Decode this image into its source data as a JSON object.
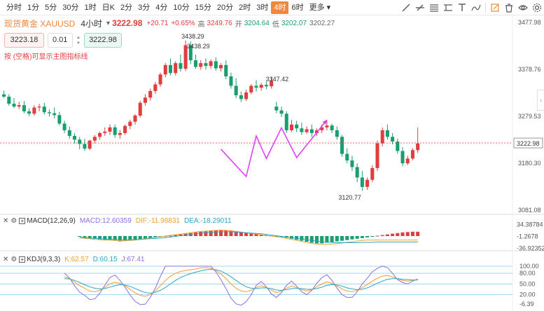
{
  "toolbar": {
    "intervals": [
      "分时",
      "1分",
      "5分",
      "30分",
      "1时",
      "日K",
      "2分",
      "3分",
      "4分",
      "10分",
      "15分",
      "20分",
      "2时",
      "3时",
      "4时",
      "6时",
      "更多"
    ],
    "active_interval": "4时",
    "icons": [
      "trend-line-icon",
      "horizontal-line-icon",
      "parallel-lines-icon",
      "text-icon",
      "pen-icon",
      "edit-icon",
      "delete-icon",
      "eye-icon",
      "settings-icon"
    ]
  },
  "header": {
    "name": "现货黄金 XAUUSD",
    "interval": "4小时",
    "price": "3222.98",
    "change": "+20.71",
    "change_pct": "+0.65%",
    "high_label": "高",
    "high": "3249.76",
    "open_label": "开",
    "open": "3204.64",
    "low_label": "低",
    "low": "3202.07",
    "close": "3202.27"
  },
  "trade": {
    "sell": "3223.18",
    "qty": "0.01",
    "buy": "3222.98"
  },
  "hint": "按 (空格)可显示主图指标线",
  "colors": {
    "up": "#e03e3e",
    "down": "#1a9e6f",
    "accent": "#f0873c",
    "projection": "#e040fb"
  },
  "chart_data": [
    {
      "type": "candlestick",
      "name": "price",
      "y_axis_labels": [
        "3477.98",
        "3378.76",
        "3279.53",
        "3180.30",
        "3081.08"
      ],
      "y_axis_values": [
        3477.98,
        3378.76,
        3279.53,
        3180.3,
        3081.08
      ],
      "current_price_label": "3222.98",
      "annotations": [
        {
          "text": "3438.29",
          "value": 3438.29
        },
        {
          "text": "3438.29",
          "value": 3438.29
        },
        {
          "text": "3347.42",
          "value": 3347.42
        },
        {
          "text": "3120.77",
          "value": 3120.77
        }
      ],
      "candles": [
        [
          3326,
          3334,
          3321,
          3318
        ],
        [
          3321,
          3326,
          3306,
          3302
        ],
        [
          3306,
          3318,
          3300,
          3297
        ],
        [
          3300,
          3310,
          3303,
          3295
        ],
        [
          3303,
          3312,
          3290,
          3286
        ],
        [
          3290,
          3296,
          3285,
          3280
        ],
        [
          3285,
          3303,
          3298,
          3281
        ],
        [
          3298,
          3306,
          3300,
          3290
        ],
        [
          3300,
          3308,
          3288,
          3283
        ],
        [
          3288,
          3294,
          3286,
          3279
        ],
        [
          3286,
          3298,
          3282,
          3275
        ],
        [
          3282,
          3289,
          3264,
          3260
        ],
        [
          3264,
          3270,
          3250,
          3244
        ],
        [
          3250,
          3258,
          3238,
          3232
        ],
        [
          3238,
          3244,
          3230,
          3222
        ],
        [
          3230,
          3236,
          3221,
          3210
        ],
        [
          3221,
          3232,
          3211,
          3206
        ],
        [
          3211,
          3230,
          3228,
          3208
        ],
        [
          3228,
          3240,
          3236,
          3222
        ],
        [
          3236,
          3247,
          3244,
          3230
        ],
        [
          3244,
          3256,
          3247,
          3238
        ],
        [
          3247,
          3262,
          3256,
          3240
        ],
        [
          3256,
          3262,
          3240,
          3234
        ],
        [
          3240,
          3250,
          3244,
          3232
        ],
        [
          3244,
          3262,
          3259,
          3240
        ],
        [
          3259,
          3272,
          3268,
          3252
        ],
        [
          3268,
          3284,
          3281,
          3262
        ],
        [
          3281,
          3312,
          3308,
          3277
        ],
        [
          3308,
          3326,
          3319,
          3302
        ],
        [
          3319,
          3338,
          3333,
          3313
        ],
        [
          3333,
          3352,
          3347,
          3327
        ],
        [
          3347,
          3372,
          3368,
          3342
        ],
        [
          3368,
          3392,
          3388,
          3362
        ],
        [
          3388,
          3402,
          3371,
          3366
        ],
        [
          3371,
          3396,
          3392,
          3366
        ],
        [
          3392,
          3410,
          3380,
          3374
        ],
        [
          3380,
          3440,
          3430,
          3375
        ],
        [
          3430,
          3438,
          3398,
          3390
        ],
        [
          3398,
          3410,
          3384,
          3380
        ],
        [
          3384,
          3398,
          3392,
          3378
        ],
        [
          3392,
          3402,
          3386,
          3378
        ],
        [
          3386,
          3400,
          3396,
          3380
        ],
        [
          3396,
          3404,
          3381,
          3376
        ],
        [
          3381,
          3392,
          3388,
          3374
        ],
        [
          3388,
          3398,
          3364,
          3358
        ],
        [
          3364,
          3372,
          3344,
          3338
        ],
        [
          3344,
          3360,
          3324,
          3318
        ],
        [
          3324,
          3332,
          3316,
          3310
        ],
        [
          3316,
          3336,
          3330,
          3312
        ],
        [
          3330,
          3348,
          3344,
          3326
        ],
        [
          3344,
          3356,
          3340,
          3332
        ],
        [
          3340,
          3350,
          3346,
          3334
        ],
        [
          3346,
          3353,
          3343,
          3337
        ],
        [
          3343,
          3362,
          3355,
          3338
        ],
        [
          3300,
          3310,
          3292,
          3286
        ],
        [
          3292,
          3300,
          3285,
          3278
        ],
        [
          3285,
          3290,
          3250,
          3244
        ],
        [
          3250,
          3272,
          3262,
          3246
        ],
        [
          3262,
          3270,
          3254,
          3246
        ],
        [
          3254,
          3266,
          3246,
          3240
        ],
        [
          3246,
          3258,
          3252,
          3242
        ],
        [
          3252,
          3262,
          3244,
          3236
        ],
        [
          3244,
          3254,
          3250,
          3238
        ],
        [
          3250,
          3262,
          3256,
          3244
        ],
        [
          3256,
          3270,
          3260,
          3250
        ],
        [
          3260,
          3264,
          3250,
          3244
        ],
        [
          3250,
          3258,
          3236,
          3230
        ],
        [
          3236,
          3240,
          3200,
          3194
        ],
        [
          3200,
          3212,
          3186,
          3180
        ],
        [
          3186,
          3196,
          3172,
          3164
        ],
        [
          3172,
          3180,
          3150,
          3140
        ],
        [
          3150,
          3164,
          3130,
          3122
        ],
        [
          3130,
          3150,
          3145,
          3124
        ],
        [
          3145,
          3176,
          3170,
          3140
        ],
        [
          3170,
          3228,
          3222,
          3164
        ],
        [
          3222,
          3256,
          3250,
          3216
        ],
        [
          3250,
          3262,
          3236,
          3230
        ],
        [
          3236,
          3244,
          3226,
          3220
        ],
        [
          3226,
          3232,
          3206,
          3200
        ],
        [
          3206,
          3214,
          3180,
          3174
        ],
        [
          3180,
          3196,
          3190,
          3176
        ],
        [
          3190,
          3212,
          3208,
          3186
        ],
        [
          3208,
          3256,
          3222,
          3202
        ]
      ],
      "projection_path_values": [
        {
          "x": 43,
          "y": 3210
        },
        {
          "x": 48,
          "y": 3152
        },
        {
          "x": 50,
          "y": 3238
        },
        {
          "x": 52,
          "y": 3190
        },
        {
          "x": 55,
          "y": 3255
        },
        {
          "x": 58,
          "y": 3192
        },
        {
          "x": 64,
          "y": 3272
        }
      ]
    },
    {
      "type": "bar",
      "name": "MACD",
      "label": "MACD(12,26,9)",
      "series_labels": [
        "MACD:12.60359",
        "DIF:-11.98831",
        "DEA:-18.29011"
      ],
      "y_axis_labels": [
        "34.38784",
        "-1.2678",
        "-36.92352"
      ],
      "y_axis_values": [
        34.38784,
        -1.2678,
        -36.92352
      ],
      "histogram": [
        -2,
        -4,
        -6,
        -8,
        -10,
        -12,
        -12,
        -14,
        -16,
        -15,
        -14,
        -12,
        -10,
        -8,
        -6,
        -4,
        -2,
        -1,
        1,
        3,
        5,
        7,
        9,
        11,
        13,
        14,
        16,
        18,
        19,
        18,
        16,
        14,
        12,
        10,
        8,
        6,
        4,
        2,
        1,
        -1,
        -3,
        -5,
        -8,
        -11,
        -14,
        -17,
        -20,
        -22,
        -22,
        -20,
        -18,
        -16,
        -14,
        -12,
        -10,
        -8,
        -6,
        -4,
        -2,
        1,
        3,
        5,
        7,
        9,
        11,
        12,
        13,
        13
      ],
      "dif": [
        -5,
        -7,
        -8,
        -10,
        -11,
        -12,
        -12,
        -13,
        -14,
        -14,
        -13,
        -12,
        -10,
        -8,
        -6,
        -4,
        -2,
        0,
        2,
        4,
        6,
        8,
        10,
        12,
        14,
        15,
        16,
        17,
        18,
        17,
        16,
        14,
        12,
        10,
        8,
        6,
        4,
        2,
        0,
        -2,
        -4,
        -7,
        -10,
        -13,
        -16,
        -19,
        -22,
        -24,
        -25,
        -25,
        -24,
        -23,
        -21,
        -19,
        -17,
        -15,
        -13,
        -12,
        -12,
        -12,
        -12,
        -12,
        -12,
        -12,
        -12,
        -12,
        -12,
        -12
      ],
      "dea": [
        -4,
        -5,
        -6,
        -7,
        -8,
        -9,
        -10,
        -10,
        -11,
        -11,
        -11,
        -11,
        -10,
        -9,
        -8,
        -7,
        -6,
        -5,
        -3,
        -1,
        1,
        3,
        5,
        7,
        9,
        10,
        11,
        12,
        13,
        13,
        13,
        12,
        11,
        10,
        9,
        8,
        7,
        5,
        3,
        1,
        -1,
        -3,
        -5,
        -7,
        -9,
        -11,
        -13,
        -15,
        -17,
        -18,
        -19,
        -20,
        -20,
        -20,
        -20,
        -20,
        -19,
        -19,
        -19,
        -18,
        -18,
        -18,
        -18,
        -18,
        -18,
        -18,
        -18,
        -18
      ]
    },
    {
      "type": "line",
      "name": "KDJ",
      "label": "KDJ(9,3,3)",
      "series_labels": [
        "K:62.57",
        "D:60.15",
        "J:67.41"
      ],
      "y_axis_labels": [
        "100.00",
        "80.00",
        "50.00",
        "20.00",
        "-6.39"
      ],
      "y_axis_values": [
        100,
        80,
        50,
        20,
        -6.39
      ],
      "hlines": [
        100,
        80,
        50,
        20
      ],
      "k": [
        70,
        65,
        55,
        45,
        38,
        30,
        28,
        32,
        40,
        50,
        55,
        52,
        45,
        35,
        25,
        18,
        15,
        20,
        30,
        45,
        60,
        72,
        80,
        85,
        88,
        90,
        92,
        95,
        96,
        94,
        88,
        78,
        65,
        50,
        38,
        30,
        28,
        32,
        40,
        45,
        40,
        32,
        26,
        30,
        38,
        44,
        40,
        34,
        30,
        34,
        42,
        50,
        56,
        52,
        44,
        36,
        30,
        28,
        32,
        40,
        48,
        58,
        66,
        72,
        74,
        70,
        64,
        60,
        58,
        60,
        62
      ],
      "d": [
        65,
        64,
        60,
        54,
        48,
        42,
        38,
        36,
        37,
        41,
        45,
        48,
        47,
        43,
        37,
        31,
        26,
        24,
        26,
        32,
        40,
        50,
        60,
        68,
        74,
        79,
        83,
        87,
        90,
        91,
        90,
        86,
        79,
        70,
        60,
        50,
        42,
        38,
        37,
        39,
        39,
        37,
        33,
        32,
        34,
        37,
        38,
        37,
        35,
        35,
        37,
        41,
        46,
        48,
        47,
        44,
        39,
        36,
        34,
        35,
        39,
        45,
        52,
        58,
        63,
        65,
        65,
        63,
        62,
        61,
        61
      ],
      "j": [
        80,
        67,
        45,
        27,
        18,
        6,
        8,
        24,
        46,
        68,
        75,
        60,
        41,
        19,
        1,
        -8,
        -7,
        12,
        38,
        71,
        100,
        100,
        100,
        100,
        100,
        100,
        100,
        100,
        100,
        100,
        84,
        62,
        37,
        10,
        -6,
        -10,
        0,
        20,
        46,
        57,
        42,
        22,
        12,
        26,
        46,
        58,
        44,
        28,
        20,
        32,
        52,
        68,
        76,
        60,
        38,
        20,
        12,
        12,
        28,
        50,
        66,
        84,
        94,
        100,
        96,
        80,
        62,
        54,
        50,
        58,
        64
      ]
    }
  ]
}
